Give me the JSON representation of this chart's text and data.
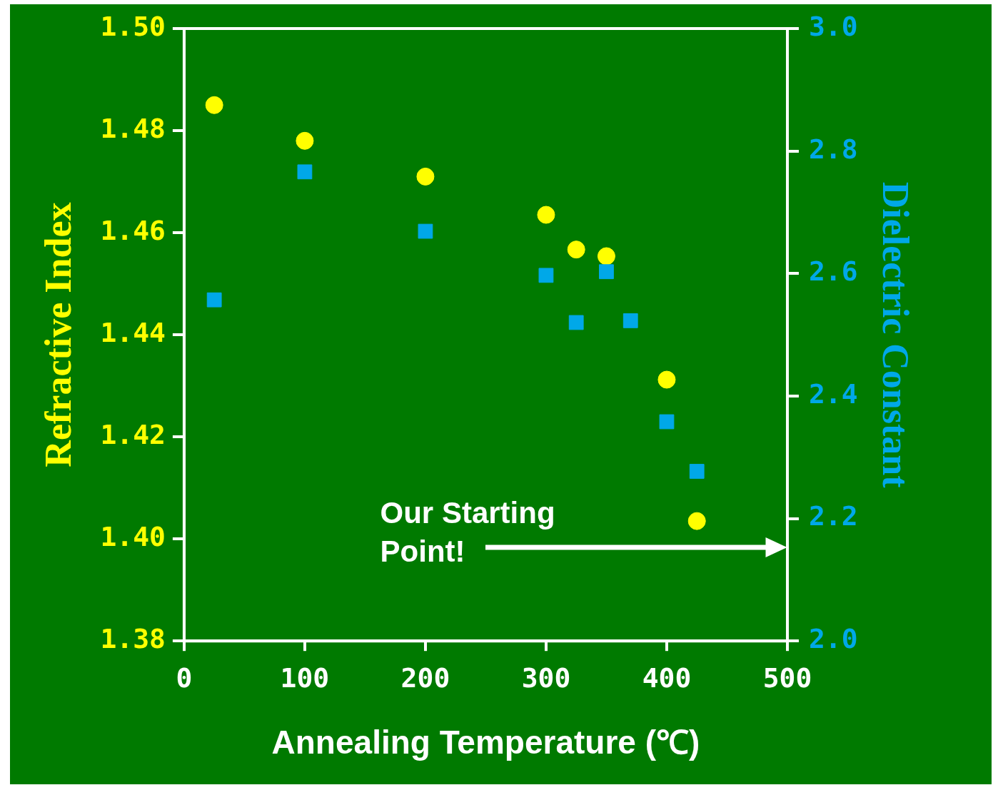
{
  "chart_data": {
    "type": "scatter",
    "xlabel": "Annealing Temperature (℃)",
    "ylabel": "Refractive Index",
    "y2label": "Dielectric Constant",
    "x": [
      25,
      100,
      200,
      300,
      325,
      350,
      370,
      400,
      425
    ],
    "series": [
      {
        "marker": "circle",
        "color": "#ffff00",
        "values": [
          1.485,
          1.478,
          1.471,
          1.4635,
          1.4567,
          1.4554,
          null,
          1.4312,
          1.4035
        ]
      },
      {
        "marker": "square",
        "axis": "y2",
        "color": "#00a8e8",
        "values": [
          2.557,
          2.766,
          2.669,
          2.597,
          2.52,
          2.603,
          2.523,
          2.358,
          2.277
        ]
      }
    ],
    "xlim": [
      0,
      500
    ],
    "xticks": [
      0,
      100,
      200,
      300,
      400,
      500
    ],
    "ylim": [
      1.38,
      1.5
    ],
    "yticks": [
      {
        "value": 1.38,
        "label": "1.38"
      },
      {
        "value": 1.4,
        "label": "1.40"
      },
      {
        "value": 1.42,
        "label": "1.42"
      },
      {
        "value": 1.44,
        "label": "1.44"
      },
      {
        "value": 1.46,
        "label": "1.46"
      },
      {
        "value": 1.48,
        "label": "1.48"
      },
      {
        "value": 1.5,
        "label": "1.50"
      }
    ],
    "y2lim": [
      2,
      3
    ],
    "y2ticks": [
      {
        "value": 2,
        "label": "2.0"
      },
      2.2,
      2.4,
      2.6,
      2.8,
      {
        "value": 3,
        "label": "3.0"
      }
    ],
    "annotations": [
      "Our Starting Point!"
    ],
    "grid": false,
    "legend": false
  }
}
